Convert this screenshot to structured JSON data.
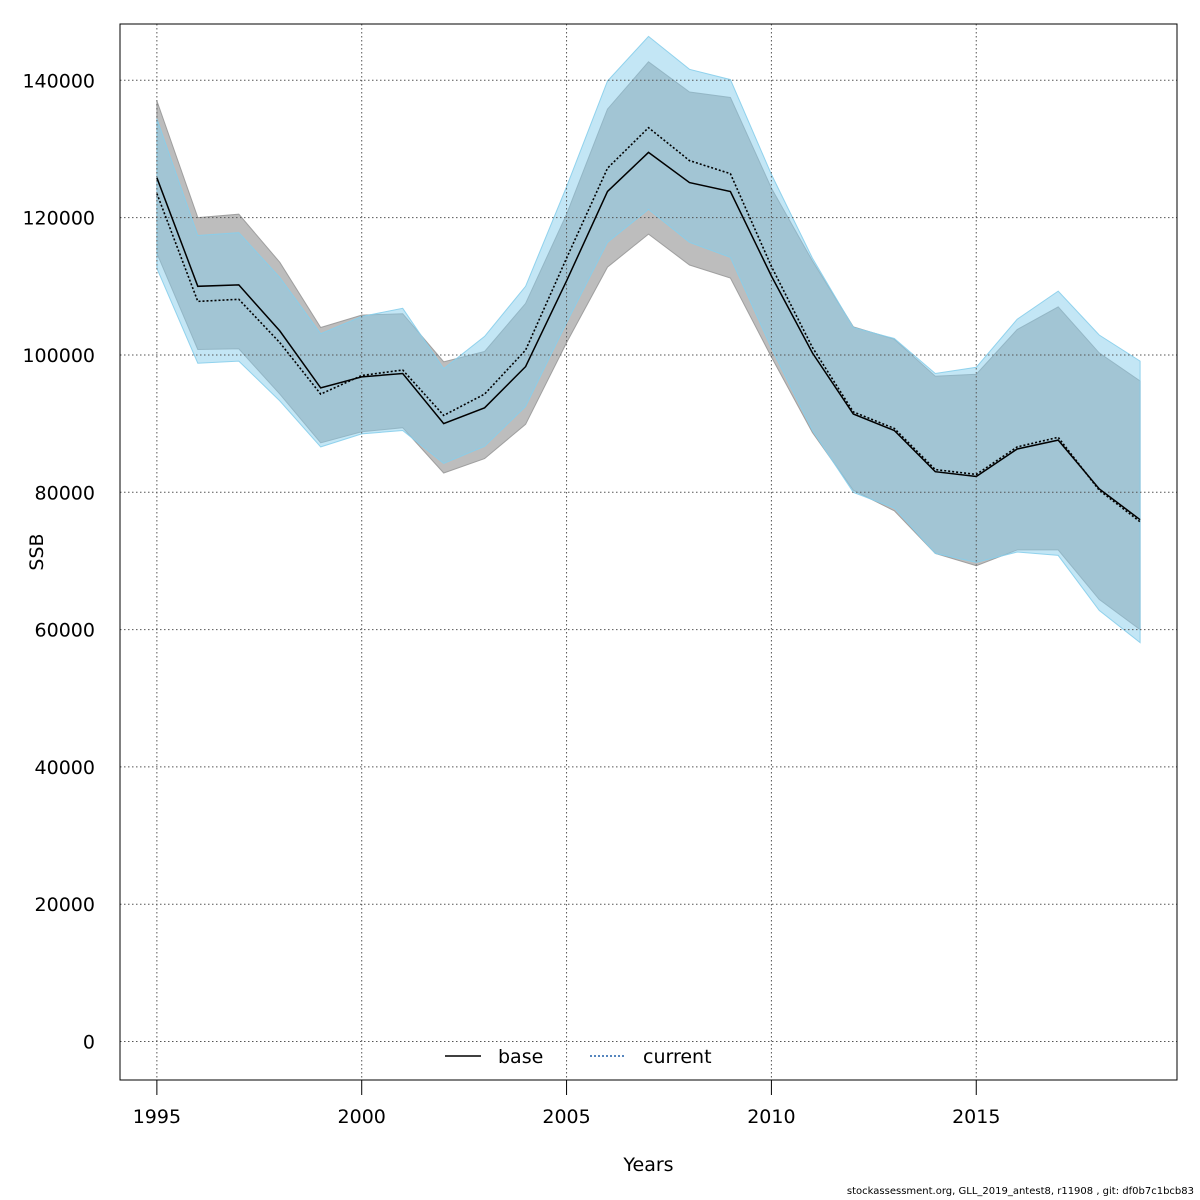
{
  "footer": "stockassessment.org, GLL_2019_antest8, r11908 , git: df0b7c1bcb83",
  "chart_data": {
    "type": "line",
    "title": "",
    "xlabel": "Years",
    "ylabel": "SSB",
    "xlim": [
      1994.1,
      2019.9
    ],
    "ylim": [
      -5600,
      148200
    ],
    "x_ticks": [
      1995,
      2000,
      2005,
      2010,
      2015
    ],
    "y_ticks": [
      0,
      20000,
      40000,
      60000,
      80000,
      100000,
      120000,
      140000
    ],
    "grid": true,
    "legend": "bottom-center",
    "x": [
      1995,
      1996,
      1997,
      1998,
      1999,
      2000,
      2001,
      2002,
      2003,
      2004,
      2005,
      2006,
      2007,
      2008,
      2009,
      2010,
      2011,
      2012,
      2013,
      2014,
      2015,
      2016,
      2017,
      2018,
      2019
    ],
    "series": [
      {
        "name": "base",
        "color": "#000000",
        "band_color": "#999999",
        "dash": "solid",
        "values": [
          125800,
          110000,
          110200,
          103500,
          95200,
          96800,
          97300,
          90000,
          92300,
          98300,
          110800,
          123800,
          129500,
          125100,
          123800,
          111500,
          100300,
          91400,
          89000,
          83000,
          82300,
          86300,
          87600,
          80500,
          76000
        ],
        "upper": [
          137000,
          120000,
          120500,
          113500,
          104000,
          105800,
          106000,
          99000,
          100500,
          107500,
          120500,
          135800,
          142700,
          138300,
          137500,
          124300,
          113700,
          104100,
          102300,
          96900,
          97200,
          103700,
          107000,
          100300,
          96200
        ],
        "lower": [
          114800,
          100800,
          100900,
          94300,
          87200,
          88800,
          89400,
          82800,
          84900,
          89900,
          101800,
          112800,
          117600,
          113100,
          111200,
          99700,
          88700,
          80300,
          77300,
          71100,
          69300,
          71600,
          71600,
          64400,
          60000
        ]
      },
      {
        "name": "current",
        "color": "#000000",
        "band_color": "#87ceeb",
        "dash": "dotted",
        "values": [
          123500,
          107800,
          108100,
          101800,
          94300,
          97000,
          97800,
          91200,
          94300,
          100700,
          114100,
          127200,
          133100,
          128300,
          126400,
          112900,
          101100,
          91700,
          89300,
          83300,
          82600,
          86600,
          88000,
          80300,
          75700
        ],
        "upper": [
          134400,
          117400,
          117800,
          111300,
          103100,
          105600,
          106800,
          98000,
          102700,
          110000,
          124500,
          139900,
          146400,
          141600,
          140100,
          126300,
          114100,
          104000,
          102400,
          97300,
          98200,
          105200,
          109300,
          102900,
          99100
        ],
        "lower": [
          112600,
          98800,
          99100,
          93300,
          86600,
          88500,
          89000,
          84200,
          86700,
          92500,
          104700,
          116400,
          121200,
          116400,
          114200,
          101000,
          89000,
          80000,
          77700,
          71100,
          69800,
          71300,
          70800,
          62800,
          58100
        ]
      }
    ]
  }
}
